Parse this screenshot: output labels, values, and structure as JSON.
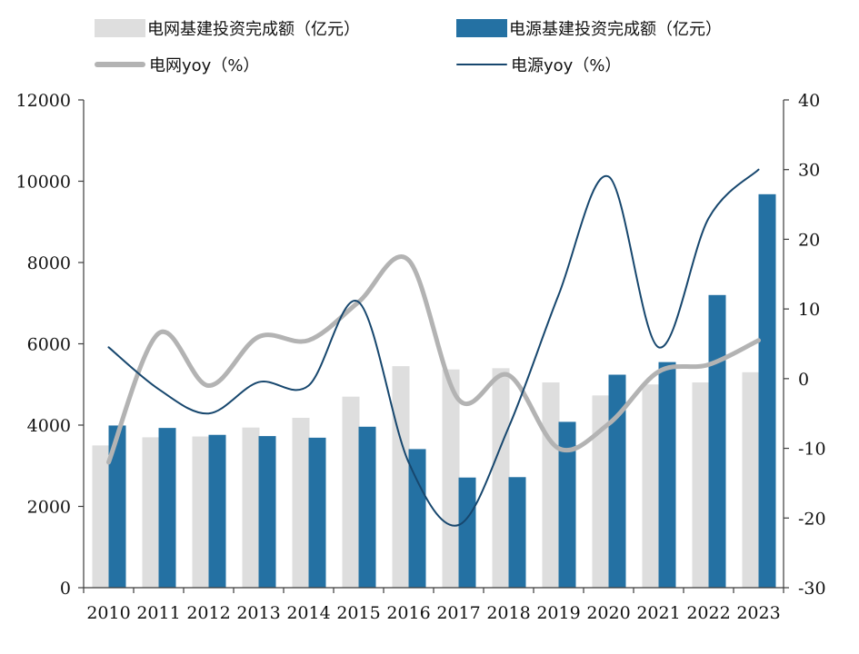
{
  "chart_data": {
    "type": "bar",
    "categories": [
      "2010",
      "2011",
      "2012",
      "2013",
      "2014",
      "2015",
      "2016",
      "2017",
      "2018",
      "2019",
      "2020",
      "2021",
      "2022",
      "2023"
    ],
    "series": [
      {
        "name": "电网基建投资完成额（亿元）",
        "type": "bar",
        "axis": "left",
        "color": "#dedede",
        "values": [
          3500,
          3700,
          3720,
          3940,
          4180,
          4700,
          5450,
          5370,
          5400,
          5050,
          4730,
          5000,
          5050,
          5300
        ]
      },
      {
        "name": "电源基建投资完成额（亿元）",
        "type": "bar",
        "axis": "left",
        "color": "#2471a3",
        "values": [
          3990,
          3930,
          3760,
          3730,
          3690,
          3960,
          3410,
          2710,
          2720,
          4080,
          5240,
          5550,
          7200,
          9680
        ]
      },
      {
        "name": "电网yoy（%）",
        "type": "line",
        "axis": "right",
        "color": "#b3b3b3",
        "values": [
          -12,
          6.5,
          -1,
          6,
          5.5,
          11,
          17,
          -3,
          0.5,
          -10,
          -6.5,
          1,
          2,
          5.5
        ]
      },
      {
        "name": "电源yoy（%）",
        "type": "line",
        "axis": "right",
        "color": "#17476e",
        "values": [
          4.5,
          -1.5,
          -5,
          -0.5,
          -1,
          11,
          -12,
          -21,
          -7,
          12,
          29,
          4.5,
          23,
          30
        ]
      }
    ],
    "y_left": {
      "ticks": [
        "0",
        "2000",
        "4000",
        "6000",
        "8000",
        "10000",
        "12000"
      ],
      "min": 0,
      "max": 12000
    },
    "y_right": {
      "ticks": [
        "-30",
        "-20",
        "-10",
        "0",
        "10",
        "20",
        "30",
        "40"
      ],
      "min": -30,
      "max": 40
    },
    "grid": false,
    "legend_position": "top"
  },
  "colors": {
    "axis": "#3c3c3c",
    "text": "#111111"
  }
}
